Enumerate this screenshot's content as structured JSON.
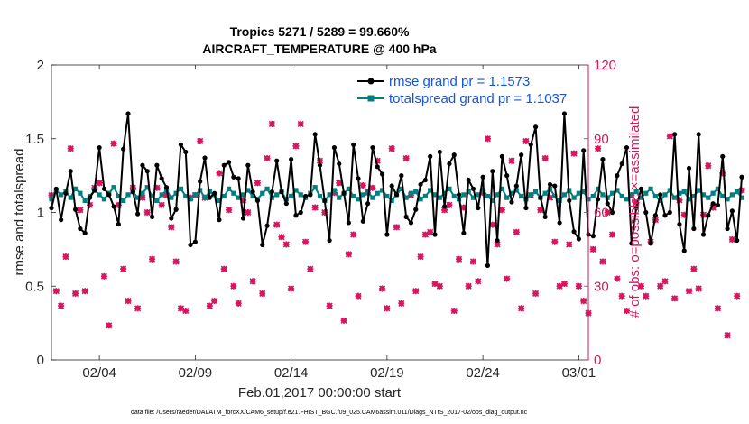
{
  "chart_data": {
    "type": "line",
    "title": [
      "Tropics 5271 / 5289 = 99.660%",
      "AIRCRAFT_TEMPERATURE @ 400 hPa"
    ],
    "xlabel": "Feb.01,2017 00:00:00 start",
    "ylabel_left": "rmse and totalspread",
    "ylabel_right": "# of obs: o=possible; ×=assimilated",
    "footnote": "data file: /Users/raeder/DAI/ATM_forcXX/CAM6_setup/f.e21.FHIST_BGC.f09_025.CAM6assim.011/Diags_NTrS_2017-02/obs_diag_output.nc",
    "xlim": [
      1.0,
      29.0
    ],
    "ylim_left": [
      0,
      2
    ],
    "ylim_right": [
      0,
      120
    ],
    "x_ticks": [
      3.5,
      8.5,
      13.5,
      18.5,
      23.5,
      28.5
    ],
    "x_tick_labels": [
      "02/04",
      "02/09",
      "02/14",
      "02/19",
      "02/24",
      "03/01"
    ],
    "y_ticks_left": [
      0,
      0.5,
      1,
      1.5,
      2
    ],
    "y_tick_labels_left": [
      "0",
      "0.5",
      "1",
      "1.5",
      "2"
    ],
    "y_ticks_right": [
      0,
      30,
      60,
      90,
      120
    ],
    "y_tick_labels_right": [
      "0",
      "30",
      "60",
      "90",
      "120"
    ],
    "legend_position": "top-right",
    "colors": {
      "rmse": "#000000",
      "totalspread": "#008080",
      "obs": "#d6165f",
      "legend_text": "#1455d9",
      "right_axis": "#d6165f"
    },
    "series": [
      {
        "name": "rmse grand pr = 1.1573",
        "axis": "left",
        "x_start": 1.0,
        "x_step": 0.25,
        "values": [
          1.03,
          1.16,
          0.95,
          1.13,
          1.28,
          1.02,
          0.89,
          0.86,
          1.1,
          1.15,
          1.44,
          1.16,
          1.12,
          1.04,
          0.92,
          1.43,
          1.67,
          1.14,
          0.99,
          1.32,
          1.28,
          0.97,
          1.32,
          1.23,
          1.17,
          0.96,
          1.02,
          1.46,
          1.41,
          0.78,
          0.8,
          1.21,
          1.37,
          1.1,
          1.13,
          0.95,
          1.32,
          1.34,
          1.24,
          1.23,
          0.96,
          1.32,
          1.14,
          1.08,
          0.78,
          0.91,
          1.14,
          1.35,
          1.14,
          1.06,
          1.36,
          0.98,
          1.0,
          1.11,
          1.12,
          1.53,
          1.32,
          1.08,
          0.81,
          1.44,
          1.33,
          1.13,
          0.93,
          1.46,
          1.23,
          0.94,
          1.06,
          1.44,
          1.31,
          1.26,
          0.85,
          1.18,
          1.12,
          1.25,
          0.97,
          0.93,
          1.02,
          1.19,
          1.22,
          1.38,
          0.85,
          1.41,
          1.04,
          1.33,
          1.39,
          1.12,
          0.86,
          1.22,
          1.16,
          1.03,
          1.24,
          0.64,
          1.28,
          0.81,
          1.38,
          1.25,
          1.07,
          1.18,
          1.39,
          1.03,
          1.46,
          1.58,
          1.1,
          0.97,
          1.19,
          1.18,
          0.93,
          1.67,
          1.08,
          0.87,
          0.82,
          1.42,
          0.85,
          0.84,
          1.09,
          1.36,
          1.06,
          1.0,
          1.25,
          1.33,
          1.44,
          0.79,
          1.03,
          1.16,
          1.0,
          0.79,
          0.98,
          1.12,
          0.98,
          1.0,
          1.53,
          0.92,
          0.74,
          1.3,
          0.89,
          1.53,
          0.85,
          0.98,
          1.06,
          1.05,
          1.38,
          0.89,
          1.01,
          0.81,
          1.24
        ]
      },
      {
        "name": "totalspread grand pr = 1.1037",
        "axis": "left",
        "x_start": 1.0,
        "x_step": 0.25,
        "values": [
          1.09,
          1.15,
          1.12,
          1.14,
          1.1,
          1.16,
          1.13,
          1.08,
          1.11,
          1.15,
          1.12,
          1.09,
          1.13,
          1.17,
          1.11,
          1.08,
          1.12,
          1.14,
          1.1,
          1.13,
          1.17,
          1.11,
          1.08,
          1.12,
          1.15,
          1.1,
          1.13,
          1.16,
          1.11,
          1.09,
          1.12,
          1.15,
          1.1,
          1.14,
          1.12,
          1.08,
          1.11,
          1.16,
          1.13,
          1.1,
          1.12,
          1.15,
          1.11,
          1.09,
          1.13,
          1.16,
          1.1,
          1.12,
          1.14,
          1.09,
          1.11,
          1.15,
          1.12,
          1.1,
          1.13,
          1.17,
          1.11,
          1.08,
          1.12,
          1.15,
          1.1,
          1.13,
          1.16,
          1.11,
          1.09,
          1.12,
          1.14,
          1.1,
          1.13,
          1.15,
          1.11,
          1.08,
          1.12,
          1.16,
          1.1,
          1.13,
          1.14,
          1.09,
          1.11,
          1.15,
          1.12,
          1.1,
          1.13,
          1.16,
          1.11,
          1.09,
          1.12,
          1.14,
          1.1,
          1.12,
          1.15,
          1.11,
          1.08,
          1.12,
          1.16,
          1.1,
          1.13,
          1.15,
          1.11,
          1.09,
          1.12,
          1.14,
          1.1,
          1.13,
          1.16,
          1.11,
          1.08,
          1.12,
          1.15,
          1.1,
          1.13,
          1.14,
          1.09,
          1.11,
          1.16,
          1.12,
          1.1,
          1.13,
          1.15,
          1.11,
          1.09,
          1.12,
          1.14,
          1.1,
          1.13,
          1.16,
          1.11,
          1.08,
          1.12,
          1.15,
          1.1,
          1.13,
          1.14,
          1.09,
          1.11,
          1.15,
          1.12,
          1.1,
          1.13,
          1.16,
          1.11,
          1.09,
          1.12,
          1.14,
          1.1
        ]
      },
      {
        "name": "obs assimilated",
        "axis": "right",
        "marker": "x",
        "x_start": 1.0,
        "x_step": 0.25,
        "values": [
          67,
          28,
          22,
          42,
          86,
          27,
          61,
          28,
          63,
          70,
          72,
          34,
          14,
          88,
          63,
          37,
          24,
          70,
          21,
          66,
          60,
          41,
          70,
          63,
          67,
          54,
          40,
          21,
          20,
          66,
          67,
          89,
          66,
          22,
          24,
          76,
          37,
          61,
          30,
          23,
          65,
          60,
          32,
          72,
          27,
          82,
          96,
          55,
          50,
          47,
          29,
          87,
          96,
          48,
          37,
          62,
          81,
          60,
          22,
          68,
          72,
          16,
          43,
          51,
          26,
          71,
          68,
          70,
          81,
          29,
          21,
          86,
          54,
          23,
          82,
          67,
          28,
          42,
          51,
          52,
          31,
          30,
          61,
          63,
          20,
          41,
          62,
          30,
          40,
          32,
          68,
          90,
          55,
          47,
          61,
          33,
          81,
          52,
          21,
          89,
          67,
          27,
          61,
          82,
          66,
          48,
          30,
          31,
          47,
          84,
          30,
          24,
          19,
          45,
          86,
          40,
          60,
          51,
          33,
          26,
          20,
          67,
          64,
          30,
          26,
          48,
          57,
          30,
          32,
          91,
          25,
          65,
          59,
          28,
          37,
          29,
          59,
          79,
          62,
          21,
          76,
          10,
          49,
          26,
          69
        ]
      },
      {
        "name": "obs possible",
        "axis": "right",
        "marker": "o",
        "x_start": 1.0,
        "x_step": 0.25,
        "values": [
          67,
          28,
          22,
          42,
          86,
          27,
          61,
          28,
          63,
          70,
          72,
          34,
          14,
          88,
          63,
          37,
          24,
          70,
          21,
          66,
          60,
          41,
          70,
          63,
          67,
          54,
          40,
          21,
          20,
          66,
          67,
          89,
          66,
          22,
          24,
          76,
          37,
          61,
          30,
          23,
          65,
          60,
          32,
          72,
          27,
          82,
          96,
          55,
          50,
          47,
          29,
          87,
          96,
          48,
          37,
          62,
          81,
          60,
          22,
          68,
          72,
          16,
          43,
          51,
          26,
          71,
          68,
          70,
          81,
          29,
          21,
          86,
          54,
          23,
          82,
          67,
          28,
          42,
          51,
          52,
          31,
          30,
          61,
          63,
          20,
          41,
          62,
          30,
          40,
          32,
          68,
          90,
          55,
          47,
          61,
          33,
          81,
          52,
          21,
          89,
          67,
          27,
          61,
          82,
          66,
          48,
          30,
          31,
          47,
          84,
          30,
          24,
          19,
          45,
          86,
          40,
          60,
          51,
          33,
          26,
          20,
          67,
          64,
          30,
          26,
          48,
          57,
          30,
          32,
          91,
          25,
          65,
          59,
          28,
          37,
          29,
          59,
          79,
          62,
          21,
          76,
          10,
          49,
          26,
          69
        ]
      }
    ]
  }
}
